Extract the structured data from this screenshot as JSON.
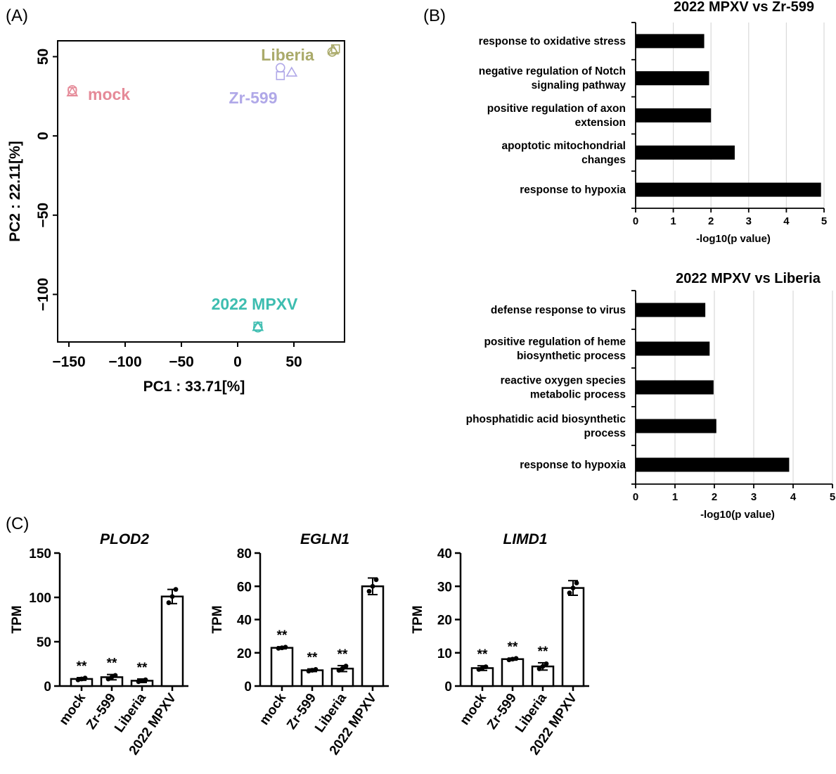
{
  "panel_labels": {
    "a": "(A)",
    "b": "(B)",
    "c": "(C)"
  },
  "chart_data": [
    {
      "type": "scatter",
      "panel": "(A)",
      "xlabel": "PC1 : 33.71[%]",
      "ylabel": "PC2 : 22.11[%]",
      "xlim": [
        -160,
        95
      ],
      "ylim": [
        -130,
        60
      ],
      "xticks": [
        -150,
        -100,
        -50,
        0,
        50
      ],
      "yticks": [
        -100,
        -50,
        0,
        50
      ],
      "xtick_labels": [
        "−150",
        "−100",
        "−50",
        "0",
        "50"
      ],
      "ytick_labels": [
        "−100",
        "−50",
        "0",
        "50"
      ],
      "groups": [
        {
          "name": "mock",
          "color": "#e58a98",
          "points": [
            {
              "x": -147,
              "y": 29,
              "marker": "circle"
            },
            {
              "x": -147,
              "y": 28,
              "marker": "square"
            },
            {
              "x": -147,
              "y": 27.5,
              "marker": "triangle"
            }
          ]
        },
        {
          "name": "Zr-599",
          "color": "#b0a8e8",
          "points": [
            {
              "x": 38,
              "y": 43,
              "marker": "circle"
            },
            {
              "x": 38,
              "y": 38,
              "marker": "square"
            },
            {
              "x": 48,
              "y": 40,
              "marker": "triangle"
            }
          ]
        },
        {
          "name": "Liberia",
          "color": "#aaaa6a",
          "points": [
            {
              "x": 84,
              "y": 53,
              "marker": "circle"
            },
            {
              "x": 87,
              "y": 55,
              "marker": "square"
            },
            {
              "x": 85,
              "y": 54,
              "marker": "triangle"
            }
          ]
        },
        {
          "name": "2022 MPXV",
          "color": "#3dbdb0",
          "points": [
            {
              "x": 18,
              "y": -121,
              "marker": "circle"
            },
            {
              "x": 18,
              "y": -120,
              "marker": "square"
            },
            {
              "x": 18,
              "y": -120.5,
              "marker": "triangle"
            }
          ]
        }
      ]
    },
    {
      "type": "bar",
      "panel": "(B)",
      "orientation": "horizontal",
      "title": "2022 MPXV vs Zr-599",
      "xlabel": "-log10(p value)",
      "xlim": [
        0,
        5
      ],
      "xticks": [
        "0",
        "1",
        "2",
        "3",
        "4",
        "5"
      ],
      "grid": true,
      "categories": [
        [
          "response to oxidative stress"
        ],
        [
          "negative regulation of Notch",
          "signaling pathway"
        ],
        [
          "positive regulation of axon",
          "extension"
        ],
        [
          "apoptotic mitochondrial",
          "changes"
        ],
        [
          "response to hypoxia"
        ]
      ],
      "values": [
        1.82,
        1.95,
        2.0,
        2.63,
        4.92
      ]
    },
    {
      "type": "bar",
      "panel": "(B)",
      "orientation": "horizontal",
      "title": "2022 MPXV vs Liberia",
      "xlabel": "-log10(p value)",
      "xlim": [
        0,
        5
      ],
      "xticks": [
        "0",
        "1",
        "2",
        "3",
        "4",
        "5"
      ],
      "grid": true,
      "categories": [
        [
          "defense response to virus"
        ],
        [
          "positive regulation of heme",
          "biosynthetic process"
        ],
        [
          "reactive oxygen species",
          "metabolic process"
        ],
        [
          "phosphatidic acid biosynthetic",
          "process"
        ],
        [
          "response to hypoxia"
        ]
      ],
      "values": [
        1.77,
        1.88,
        1.98,
        2.05,
        3.9
      ]
    },
    {
      "type": "bar",
      "panel": "(C)",
      "title": "PLOD2",
      "ylabel": "TPM",
      "ylim": [
        0,
        150
      ],
      "yticks": [
        "0",
        "50",
        "100",
        "150"
      ],
      "categories": [
        "mock",
        "Zr-599",
        "Liberia",
        "2022 MPXV"
      ],
      "values": [
        8,
        10,
        6,
        101
      ],
      "errors": [
        1.5,
        3,
        2,
        8
      ],
      "points": [
        [
          7,
          8,
          9
        ],
        [
          8,
          10,
          12
        ],
        [
          5,
          6,
          7
        ],
        [
          94,
          101,
          109
        ]
      ],
      "annotations": [
        "**",
        "**",
        "**",
        ""
      ]
    },
    {
      "type": "bar",
      "panel": "(C)",
      "title": "EGLN1",
      "ylabel": "TPM",
      "ylim": [
        0,
        80
      ],
      "yticks": [
        "0",
        "20",
        "40",
        "60",
        "80"
      ],
      "categories": [
        "mock",
        "Zr-599",
        "Liberia",
        "2022 MPXV"
      ],
      "values": [
        23,
        9.5,
        10.5,
        60
      ],
      "errors": [
        0.6,
        0.8,
        1.8,
        5
      ],
      "points": [
        [
          22.7,
          23,
          23.4
        ],
        [
          9,
          9.5,
          10
        ],
        [
          9.5,
          10.5,
          12
        ],
        [
          57,
          60,
          64
        ]
      ],
      "annotations": [
        "**",
        "**",
        "**",
        ""
      ]
    },
    {
      "type": "bar",
      "panel": "(C)",
      "title": "LIMD1",
      "ylabel": "TPM",
      "ylim": [
        0,
        40
      ],
      "yticks": [
        "0",
        "10",
        "20",
        "30",
        "40"
      ],
      "categories": [
        "mock",
        "Zr-599",
        "Liberia",
        "2022 MPXV"
      ],
      "values": [
        5.4,
        8.1,
        5.9,
        29.5
      ],
      "errors": [
        0.7,
        0.3,
        1.1,
        2.2
      ],
      "points": [
        [
          5,
          5.4,
          5.8
        ],
        [
          7.9,
          8.1,
          8.3
        ],
        [
          5.2,
          5.9,
          6.7
        ],
        [
          28,
          29.5,
          31
        ]
      ],
      "annotations": [
        "**",
        "**",
        "**",
        ""
      ]
    }
  ]
}
